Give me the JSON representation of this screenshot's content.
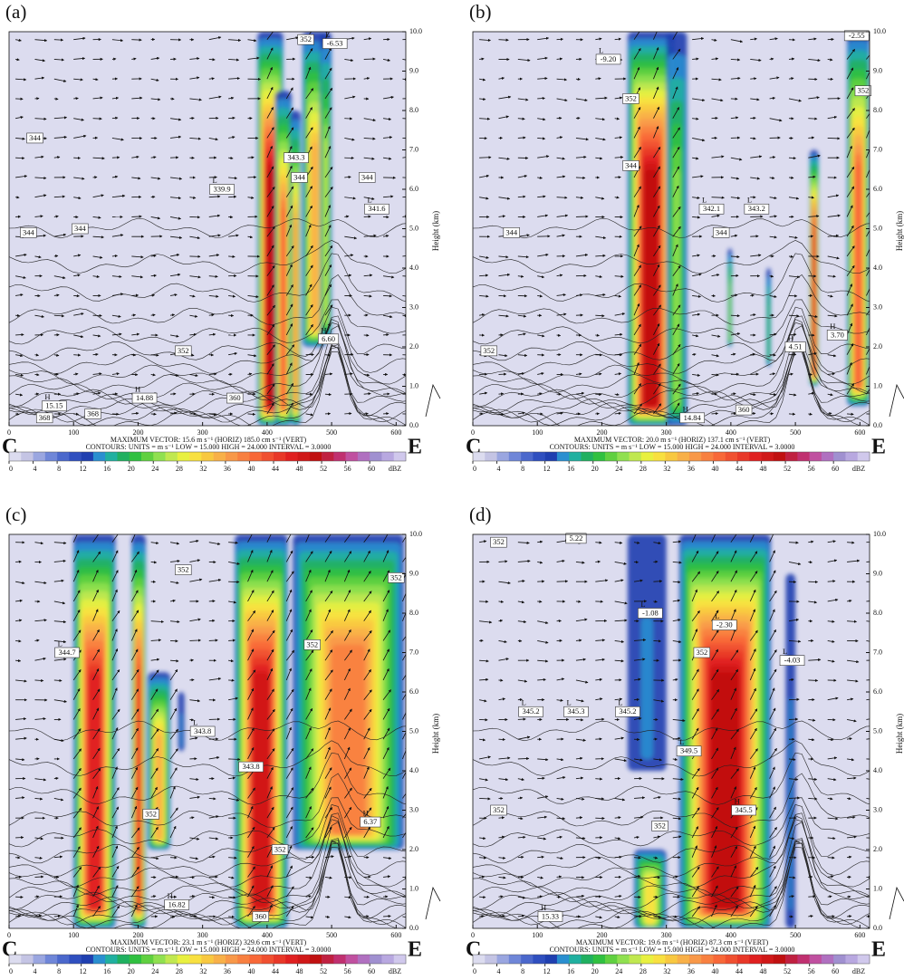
{
  "chart_data": [
    {
      "type": "cross-section",
      "panel": "(a)",
      "left_label": "C",
      "right_label": "E",
      "y_label": "Height (km)",
      "max_vector": "MAXIMUM VECTOR:  15.6 m s⁻¹ (HORIZ)      185.0 cm s⁻¹ (VERT)",
      "contours": "CONTOURS: UNITS = m s⁻¹   LOW = 15.000      HIGH = 24.000      INTERVAL =   3.0000",
      "xlim": [
        0,
        615
      ],
      "xticks": [
        0,
        100,
        200,
        300,
        400,
        500,
        600
      ],
      "ylim": [
        0,
        10
      ],
      "yticks": [
        {
          "value": 0,
          "label": "0.0"
        },
        {
          "value": 1,
          "label": "1.0"
        },
        {
          "value": 2,
          "label": "2.0"
        },
        {
          "value": 3,
          "label": "3.0"
        },
        {
          "value": 4,
          "label": "4.0"
        },
        {
          "value": 5,
          "label": "5.0"
        },
        {
          "value": 6,
          "label": "6.0"
        },
        {
          "value": 7,
          "label": "7.0"
        },
        {
          "value": 8,
          "label": "8.0"
        },
        {
          "value": 9,
          "label": "9.0"
        },
        {
          "value": 10,
          "label": "10.0"
        }
      ],
      "colorbar": {
        "lim": [
          0,
          66
        ],
        "ticks": [
          0,
          4,
          8,
          12,
          16,
          20,
          24,
          28,
          32,
          36,
          40,
          44,
          48,
          52,
          56,
          60
        ],
        "unit": "dBZ",
        "colors": [
          "#dcdcef",
          "#c4c4e4",
          "#9aa6e0",
          "#6f86d8",
          "#4b68cc",
          "#2f4fbf",
          "#1f3fb0",
          "#2a8fd0",
          "#20b0a0",
          "#20b060",
          "#30c040",
          "#60d040",
          "#90e050",
          "#c0e850",
          "#e8f040",
          "#f8e040",
          "#f8c840",
          "#f8b048",
          "#f89848",
          "#f88040",
          "#f86838",
          "#f05030",
          "#e83828",
          "#e02020",
          "#d01818",
          "#c01010",
          "#c02040",
          "#c03070",
          "#c050a0",
          "#b070c0",
          "#a090d0",
          "#b8a8e0",
          "#d0c8ec"
        ]
      },
      "annotations": [
        {
          "text": "344",
          "x": 40,
          "y": 7.3
        },
        {
          "text": "344",
          "x": 30,
          "y": 4.9
        },
        {
          "text": "344",
          "x": 110,
          "y": 5.0
        },
        {
          "text": "339.9",
          "kind": "L",
          "x": 330,
          "y": 6.0
        },
        {
          "text": "352",
          "x": 270,
          "y": 1.9
        },
        {
          "text": "15.15",
          "kind": "H",
          "x": 70,
          "y": 0.5
        },
        {
          "text": "14.88",
          "kind": "H",
          "x": 210,
          "y": 0.7
        },
        {
          "text": "368",
          "x": 55,
          "y": 0.2
        },
        {
          "text": "368",
          "x": 130,
          "y": 0.3
        },
        {
          "text": "360",
          "x": 350,
          "y": 0.7
        },
        {
          "text": "352",
          "x": 460,
          "y": 9.8
        },
        {
          "text": "-6.53",
          "kind": "L",
          "x": 505,
          "y": 9.7
        },
        {
          "text": "343.3",
          "x": 445,
          "y": 6.8
        },
        {
          "text": "344",
          "x": 450,
          "y": 6.3
        },
        {
          "text": "344",
          "x": 555,
          "y": 6.3
        },
        {
          "text": "341.6",
          "kind": "L",
          "x": 570,
          "y": 5.5
        },
        {
          "text": "6.60",
          "kind": "H",
          "x": 495,
          "y": 2.2
        }
      ]
    },
    {
      "type": "cross-section",
      "panel": "(b)",
      "left_label": "C",
      "right_label": "E",
      "y_label": "Height (km)",
      "max_vector": "MAXIMUM VECTOR:  20.0 m s⁻¹ (HORIZ)      137.1 cm s⁻¹ (VERT)",
      "contours": "CONTOURS: UNITS = m s⁻¹   LOW = 15.000      HIGH = 24.000      INTERVAL =   3.0000",
      "xlim": [
        0,
        615
      ],
      "xticks": [
        0,
        100,
        200,
        300,
        400,
        500,
        600
      ],
      "ylim": [
        0,
        10
      ],
      "yticks": [
        {
          "value": 0,
          "label": "0.0"
        },
        {
          "value": 1,
          "label": "1.0"
        },
        {
          "value": 2,
          "label": "2.0"
        },
        {
          "value": 3,
          "label": "3.0"
        },
        {
          "value": 4,
          "label": "4.0"
        },
        {
          "value": 5,
          "label": "5.0"
        },
        {
          "value": 6,
          "label": "6.0"
        },
        {
          "value": 7,
          "label": "7.0"
        },
        {
          "value": 8,
          "label": "8.0"
        },
        {
          "value": 9,
          "label": "9.0"
        },
        {
          "value": 10,
          "label": "10.0"
        }
      ],
      "colorbar": {
        "lim": [
          0,
          66
        ],
        "ticks": [
          0,
          4,
          8,
          12,
          16,
          20,
          24,
          28,
          32,
          36,
          40,
          44,
          48,
          52,
          56,
          60
        ],
        "unit": "dBZ",
        "colors": [
          "#dcdcef",
          "#c4c4e4",
          "#9aa6e0",
          "#6f86d8",
          "#4b68cc",
          "#2f4fbf",
          "#1f3fb0",
          "#2a8fd0",
          "#20b0a0",
          "#20b060",
          "#30c040",
          "#60d040",
          "#90e050",
          "#c0e850",
          "#e8f040",
          "#f8e040",
          "#f8c840",
          "#f8b048",
          "#f89848",
          "#f88040",
          "#f86838",
          "#f05030",
          "#e83828",
          "#e02020",
          "#d01818",
          "#c01010",
          "#c02040",
          "#c03070",
          "#c050a0",
          "#b070c0",
          "#a090d0",
          "#b8a8e0",
          "#d0c8ec"
        ]
      },
      "annotations": [
        {
          "text": "-9.20",
          "kind": "L",
          "x": 210,
          "y": 9.3
        },
        {
          "text": "352",
          "x": 245,
          "y": 8.3
        },
        {
          "text": "344",
          "x": 245,
          "y": 6.6
        },
        {
          "text": "344",
          "x": 60,
          "y": 4.9
        },
        {
          "text": "342.1",
          "kind": "L",
          "x": 370,
          "y": 5.5
        },
        {
          "text": "343.2",
          "kind": "L",
          "x": 440,
          "y": 5.5
        },
        {
          "text": "344",
          "x": 385,
          "y": 4.9
        },
        {
          "text": "352",
          "x": 25,
          "y": 1.9
        },
        {
          "text": "-2.55",
          "x": 595,
          "y": 9.9
        },
        {
          "text": "352",
          "x": 605,
          "y": 8.5
        },
        {
          "text": "3.70",
          "kind": "H",
          "x": 565,
          "y": 2.3
        },
        {
          "text": "4.51",
          "kind": "H",
          "x": 500,
          "y": 2.0
        },
        {
          "text": "360",
          "x": 420,
          "y": 0.4
        },
        {
          "text": "14.84",
          "kind": "H",
          "x": 340,
          "y": 0.2
        }
      ]
    },
    {
      "type": "cross-section",
      "panel": "(c)",
      "left_label": "C",
      "right_label": "E",
      "y_label": "Height (km)",
      "max_vector": "MAXIMUM VECTOR:  23.1 m s⁻¹ (HORIZ)      329.6 cm s⁻¹ (VERT)",
      "contours": "CONTOURS: UNITS = m s⁻¹   LOW = 15.000      HIGH = 24.000      INTERVAL =   3.0000",
      "xlim": [
        0,
        615
      ],
      "xticks": [
        0,
        100,
        200,
        300,
        400,
        500,
        600
      ],
      "ylim": [
        0,
        10
      ],
      "yticks": [
        {
          "value": 0,
          "label": "0.0"
        },
        {
          "value": 1,
          "label": "1.0"
        },
        {
          "value": 2,
          "label": "2.0"
        },
        {
          "value": 3,
          "label": "3.0"
        },
        {
          "value": 4,
          "label": "4.0"
        },
        {
          "value": 5,
          "label": "5.0"
        },
        {
          "value": 6,
          "label": "6.0"
        },
        {
          "value": 7,
          "label": "7.0"
        },
        {
          "value": 8,
          "label": "8.0"
        },
        {
          "value": 9,
          "label": "9.0"
        },
        {
          "value": 10,
          "label": "10.0"
        }
      ],
      "colorbar": {
        "lim": [
          0,
          66
        ],
        "ticks": [
          0,
          4,
          8,
          12,
          16,
          20,
          24,
          28,
          32,
          36,
          40,
          44,
          48,
          52,
          56,
          60
        ],
        "unit": "dBZ",
        "colors": [
          "#dcdcef",
          "#c4c4e4",
          "#9aa6e0",
          "#6f86d8",
          "#4b68cc",
          "#2f4fbf",
          "#1f3fb0",
          "#2a8fd0",
          "#20b0a0",
          "#20b060",
          "#30c040",
          "#60d040",
          "#90e050",
          "#c0e850",
          "#e8f040",
          "#f8e040",
          "#f8c840",
          "#f8b048",
          "#f89848",
          "#f88040",
          "#f86838",
          "#f05030",
          "#e83828",
          "#e02020",
          "#d01818",
          "#c01010",
          "#c02040",
          "#c03070",
          "#c050a0",
          "#b070c0",
          "#a090d0",
          "#b8a8e0",
          "#d0c8ec"
        ]
      },
      "annotations": [
        {
          "text": "352",
          "x": 270,
          "y": 9.1
        },
        {
          "text": "352",
          "x": 600,
          "y": 8.9
        },
        {
          "text": "344.7",
          "kind": "L",
          "x": 90,
          "y": 7.0
        },
        {
          "text": "352",
          "x": 470,
          "y": 7.2
        },
        {
          "text": "343.8",
          "kind": "L",
          "x": 300,
          "y": 5.0
        },
        {
          "text": "343.8",
          "x": 375,
          "y": 4.1
        },
        {
          "text": "352",
          "x": 220,
          "y": 2.9
        },
        {
          "text": "352",
          "x": 420,
          "y": 2.0
        },
        {
          "text": "360",
          "x": 390,
          "y": 0.3
        },
        {
          "text": "16.82",
          "kind": "H",
          "x": 260,
          "y": 0.6
        },
        {
          "text": "6.37",
          "kind": "H",
          "x": 560,
          "y": 2.7
        }
      ]
    },
    {
      "type": "cross-section",
      "panel": "(d)",
      "left_label": "C",
      "right_label": "E",
      "y_label": "Height (km)",
      "max_vector": "MAXIMUM VECTOR:  19.6 m s⁻¹ (HORIZ)      87.3 cm s⁻¹ (VERT)",
      "contours": "CONTOURS: UNITS = m s⁻¹   LOW = 15.000      HIGH = 24.000      INTERVAL =   3.0000",
      "xlim": [
        0,
        615
      ],
      "xticks": [
        0,
        100,
        200,
        300,
        400,
        500,
        600
      ],
      "ylim": [
        0,
        10
      ],
      "yticks": [
        {
          "value": 0,
          "label": "0.0"
        },
        {
          "value": 1,
          "label": "1.0"
        },
        {
          "value": 2,
          "label": "2.0"
        },
        {
          "value": 3,
          "label": "3.0"
        },
        {
          "value": 4,
          "label": "4.0"
        },
        {
          "value": 5,
          "label": "5.0"
        },
        {
          "value": 6,
          "label": "6.0"
        },
        {
          "value": 7,
          "label": "7.0"
        },
        {
          "value": 8,
          "label": "8.0"
        },
        {
          "value": 9,
          "label": "9.0"
        },
        {
          "value": 10,
          "label": "10.0"
        }
      ],
      "colorbar": {
        "lim": [
          0,
          66
        ],
        "ticks": [
          0,
          4,
          8,
          12,
          16,
          20,
          24,
          28,
          32,
          36,
          40,
          44,
          48,
          52,
          56,
          60
        ],
        "unit": "dBZ",
        "colors": [
          "#dcdcef",
          "#c4c4e4",
          "#9aa6e0",
          "#6f86d8",
          "#4b68cc",
          "#2f4fbf",
          "#1f3fb0",
          "#2a8fd0",
          "#20b0a0",
          "#20b060",
          "#30c040",
          "#60d040",
          "#90e050",
          "#c0e850",
          "#e8f040",
          "#f8e040",
          "#f8c840",
          "#f8b048",
          "#f89848",
          "#f88040",
          "#f86838",
          "#f05030",
          "#e83828",
          "#e02020",
          "#d01818",
          "#c01010",
          "#c02040",
          "#c03070",
          "#c050a0",
          "#b070c0",
          "#a090d0",
          "#b8a8e0",
          "#d0c8ec"
        ]
      },
      "annotations": [
        {
          "text": "352",
          "x": 40,
          "y": 9.8
        },
        {
          "text": "5.22",
          "x": 160,
          "y": 9.9
        },
        {
          "text": "-1.08",
          "kind": "L",
          "x": 275,
          "y": 8.0
        },
        {
          "text": "-2.30",
          "kind": "L",
          "x": 390,
          "y": 7.7
        },
        {
          "text": "-4.03",
          "kind": "L",
          "x": 495,
          "y": 6.8
        },
        {
          "text": "345.2",
          "kind": "L",
          "x": 90,
          "y": 5.5
        },
        {
          "text": "345.3",
          "kind": "L",
          "x": 160,
          "y": 5.5
        },
        {
          "text": "345.2",
          "kind": "L",
          "x": 240,
          "y": 5.5
        },
        {
          "text": "352",
          "x": 355,
          "y": 7.0
        },
        {
          "text": "349.5",
          "kind": "L",
          "x": 335,
          "y": 4.5
        },
        {
          "text": "345.5",
          "kind": "H",
          "x": 420,
          "y": 3.0
        },
        {
          "text": "352",
          "x": 290,
          "y": 2.6
        },
        {
          "text": "352",
          "x": 40,
          "y": 3.0
        },
        {
          "text": "15.33",
          "kind": "H",
          "x": 120,
          "y": 0.3
        }
      ]
    }
  ]
}
